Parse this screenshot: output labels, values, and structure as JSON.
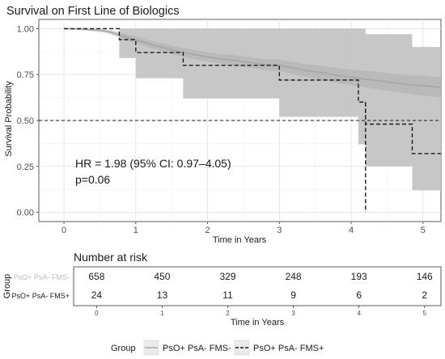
{
  "chart_data": {
    "type": "line",
    "title": "Survival on First Line of Biologics",
    "xlabel": "Time in Years",
    "ylabel": "Survival Probability",
    "xlim": [
      -0.35,
      5.25
    ],
    "ylim": [
      -0.05,
      1.05
    ],
    "x_ticks": [
      "0",
      "1",
      "2",
      "3",
      "4",
      "5"
    ],
    "y_ticks": [
      "0.00",
      "0.25",
      "0.50",
      "0.75",
      "1.00"
    ],
    "grid": true,
    "legend_title": "Group",
    "legend_position": "bottom",
    "reference_line": {
      "y": 0.5
    },
    "annotation": {
      "hr": "HR = 1.98 (95% CI: 0.97–4.05)",
      "p": "p=0.06"
    },
    "series": [
      {
        "name": "PsO+ PsA- FMS-",
        "line_color": "#a6a6a6",
        "ci_color": "#c8c8c8",
        "style": "solid",
        "x": [
          0,
          0.3,
          0.5,
          0.6,
          0.7,
          0.8,
          1.0,
          1.2,
          1.4,
          1.6,
          1.8,
          2.0,
          2.2,
          2.4,
          2.6,
          2.8,
          3.0,
          3.2,
          3.4,
          3.6,
          3.8,
          4.0,
          4.2,
          4.4,
          4.6,
          4.8,
          5.0,
          5.25
        ],
        "y": [
          1.0,
          0.995,
          0.99,
          0.985,
          0.975,
          0.96,
          0.94,
          0.915,
          0.895,
          0.875,
          0.86,
          0.845,
          0.835,
          0.825,
          0.815,
          0.805,
          0.8,
          0.785,
          0.77,
          0.76,
          0.745,
          0.735,
          0.725,
          0.715,
          0.705,
          0.695,
          0.69,
          0.68
        ],
        "ci_lower": [
          1.0,
          0.99,
          0.982,
          0.975,
          0.962,
          0.945,
          0.922,
          0.895,
          0.873,
          0.852,
          0.835,
          0.82,
          0.808,
          0.797,
          0.786,
          0.775,
          0.768,
          0.752,
          0.735,
          0.722,
          0.705,
          0.692,
          0.68,
          0.668,
          0.656,
          0.645,
          0.636,
          0.625
        ],
        "ci_upper": [
          1.0,
          1.0,
          0.998,
          0.995,
          0.988,
          0.975,
          0.958,
          0.935,
          0.917,
          0.898,
          0.885,
          0.87,
          0.862,
          0.853,
          0.844,
          0.835,
          0.832,
          0.818,
          0.805,
          0.798,
          0.785,
          0.778,
          0.77,
          0.762,
          0.754,
          0.745,
          0.744,
          0.735
        ]
      },
      {
        "name": "PsO+ PsA- FMS+",
        "line_color": "#1a1a1a",
        "ci_color": "#c4c4c4",
        "style": "dashed",
        "step_x": [
          0,
          0.77,
          1.0,
          1.2,
          1.66,
          3.0,
          4.1,
          4.2,
          4.85
        ],
        "step_y": [
          1.0,
          0.94,
          0.87,
          0.87,
          0.8,
          0.72,
          0.6,
          0.48,
          0.32
        ],
        "drop_x": 4.2,
        "drop_to_y": 0.0,
        "end_x": 5.25,
        "ci_lower": [
          1.0,
          0.84,
          0.73,
          0.73,
          0.62,
          0.52,
          0.37,
          0.25,
          0.12
        ],
        "ci_upper": [
          1.0,
          1.0,
          1.0,
          1.0,
          1.0,
          1.0,
          1.0,
          0.97,
          0.9
        ]
      }
    ]
  },
  "risk_table": {
    "title": "Number at risk",
    "ylabel": "Group",
    "xlabel": "Time in Years",
    "times": [
      "0",
      "1",
      "2",
      "3",
      "4",
      "5"
    ],
    "rows": [
      {
        "label": "PsO+ PsA- FMS-",
        "label_color": "#bdbdbd",
        "counts": [
          "658",
          "450",
          "329",
          "248",
          "193",
          "146"
        ]
      },
      {
        "label": "PsO+ PsA- FMS+",
        "label_color": "#1a1a1a",
        "counts": [
          "24",
          "13",
          "11",
          "9",
          "6",
          "2"
        ]
      }
    ]
  }
}
